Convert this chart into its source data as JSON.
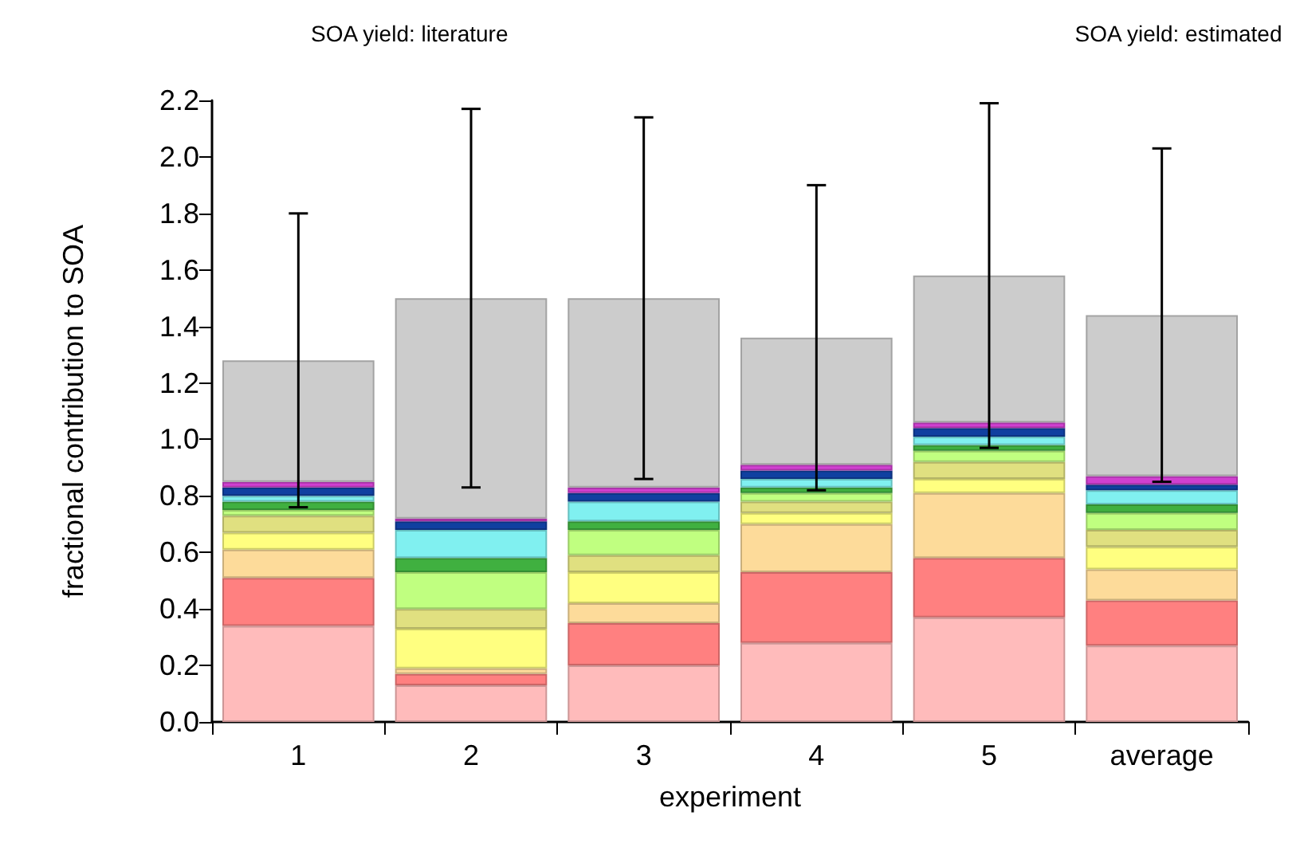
{
  "chart_data": {
    "type": "bar",
    "stacked": true,
    "xlabel": "experiment",
    "ylabel": "fractional contribution to SOA",
    "categories": [
      "1",
      "2",
      "3",
      "4",
      "5",
      "average"
    ],
    "ylim": [
      0,
      2.2
    ],
    "yticks": [
      {
        "value": 0,
        "label": "0.0"
      },
      {
        "value": 0.2,
        "label": "0.2"
      },
      {
        "value": 0.4,
        "label": "0.4"
      },
      {
        "value": 0.6,
        "label": "0.6"
      },
      {
        "value": 0.8,
        "label": "0.8"
      },
      {
        "value": 1,
        "label": "1.0"
      },
      {
        "value": 1.2,
        "label": "1.2"
      },
      {
        "value": 1.4,
        "label": "1.4"
      },
      {
        "value": 1.6,
        "label": "1.6"
      },
      {
        "value": 1.8,
        "label": "1.8"
      },
      {
        "value": 2,
        "label": "2.0"
      },
      {
        "value": 2.2,
        "label": "2.2"
      }
    ],
    "annotations": [
      "SOA yield: literature",
      "SOA yield: estimated"
    ],
    "series": [
      {
        "color": "#ffbbbb",
        "values": [
          0.34,
          0.13,
          0.2,
          0.28,
          0.37,
          0.27
        ]
      },
      {
        "color": "#ff8080",
        "values": [
          0.17,
          0.04,
          0.15,
          0.25,
          0.21,
          0.16
        ]
      },
      {
        "color": "#fddb9a",
        "values": [
          0.1,
          0.02,
          0.07,
          0.17,
          0.23,
          0.11
        ]
      },
      {
        "color": "#ffff80",
        "values": [
          0.06,
          0.14,
          0.11,
          0.04,
          0.05,
          0.08
        ]
      },
      {
        "color": "#e0e080",
        "values": [
          0.06,
          0.07,
          0.06,
          0.04,
          0.06,
          0.06
        ]
      },
      {
        "color": "#c0ff80",
        "values": [
          0.02,
          0.13,
          0.09,
          0.03,
          0.04,
          0.06
        ]
      },
      {
        "color": "#40b040",
        "values": [
          0.03,
          0.05,
          0.03,
          0.02,
          0.02,
          0.03
        ]
      },
      {
        "color": "#80f0f0",
        "values": [
          0.02,
          0.1,
          0.07,
          0.03,
          0.03,
          0.05
        ]
      },
      {
        "color": "#1040a0",
        "values": [
          0.03,
          0.03,
          0.03,
          0.03,
          0.03,
          0.02
        ]
      },
      {
        "color": "#d040d0",
        "values": [
          0.02,
          0.01,
          0.02,
          0.02,
          0.02,
          0.03
        ]
      },
      {
        "color": "#cccccc",
        "values": [
          0.43,
          0.78,
          0.67,
          0.45,
          0.52,
          0.57
        ],
        "errors": [
          0.52,
          0.67,
          0.64,
          0.54,
          0.61,
          0.59
        ]
      }
    ]
  }
}
